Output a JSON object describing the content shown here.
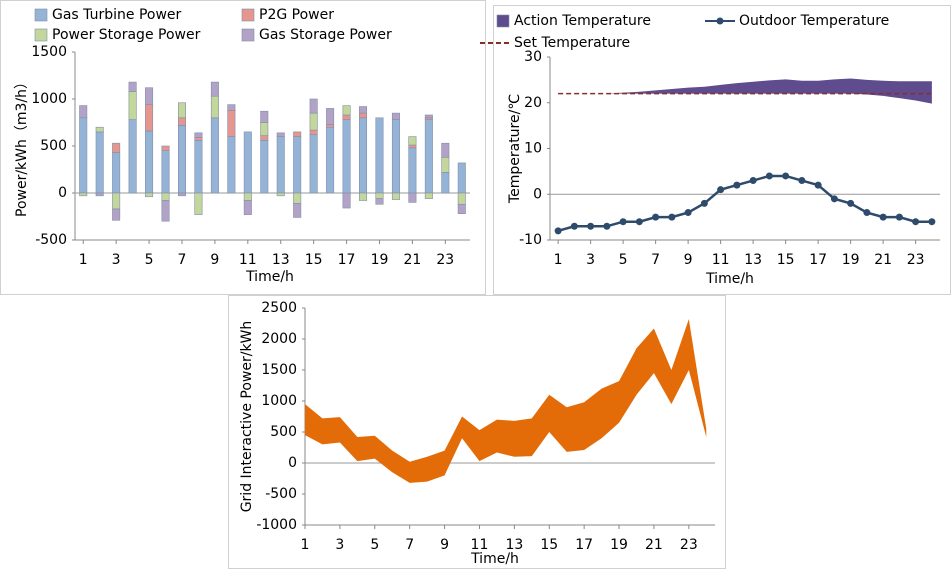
{
  "chart_data": [
    {
      "type": "bar",
      "stacked": true,
      "y_label": "Power/kWh（m3/h）",
      "x_label": "Time/h",
      "x": [
        1,
        2,
        3,
        4,
        5,
        6,
        7,
        8,
        9,
        10,
        11,
        12,
        13,
        14,
        15,
        16,
        17,
        18,
        19,
        20,
        21,
        22,
        23,
        24
      ],
      "xlim": [
        0.5,
        24.5
      ],
      "xticks": [
        1,
        3,
        5,
        7,
        9,
        11,
        13,
        15,
        17,
        19,
        21,
        23
      ],
      "ylim": [
        -500,
        1500
      ],
      "yticks": [
        -500,
        0,
        500,
        1000,
        1500
      ],
      "series": [
        {
          "name": "Gas Turbine Power",
          "color": "#95b3d7",
          "values": [
            800,
            650,
            430,
            780,
            660,
            450,
            720,
            560,
            800,
            600,
            650,
            560,
            600,
            600,
            620,
            700,
            780,
            800,
            800,
            780,
            480,
            780,
            220,
            320
          ]
        },
        {
          "name": "P2G Power",
          "color": "#e6968e",
          "values": [
            0,
            0,
            100,
            0,
            280,
            50,
            80,
            30,
            0,
            280,
            0,
            50,
            0,
            50,
            50,
            30,
            50,
            50,
            0,
            0,
            30,
            20,
            0,
            0
          ]
        },
        {
          "name": "Power Storage Power",
          "color": "#c3d69b",
          "values": [
            -30,
            50,
            -170,
            300,
            -40,
            -80,
            160,
            -230,
            230,
            0,
            -80,
            140,
            -30,
            -110,
            180,
            0,
            100,
            -80,
            -60,
            -70,
            90,
            -60,
            160,
            -120
          ]
        },
        {
          "name": "Gas Storage Power",
          "color": "#b3a2c7",
          "values": [
            130,
            -30,
            -120,
            100,
            180,
            -220,
            -30,
            50,
            150,
            60,
            -150,
            120,
            40,
            -150,
            150,
            170,
            -160,
            70,
            -60,
            70,
            -100,
            30,
            150,
            -100
          ]
        }
      ]
    },
    {
      "type": "line",
      "y_label": "Temperature/℃",
      "x_label": "Time/h",
      "x": [
        1,
        2,
        3,
        4,
        5,
        6,
        7,
        8,
        9,
        10,
        11,
        12,
        13,
        14,
        15,
        16,
        17,
        18,
        19,
        20,
        21,
        22,
        23,
        24
      ],
      "xlim": [
        0.5,
        24.5
      ],
      "xticks": [
        1,
        3,
        5,
        7,
        9,
        11,
        13,
        15,
        17,
        19,
        21,
        23
      ],
      "ylim": [
        -10,
        30
      ],
      "yticks": [
        -10,
        0,
        10,
        20,
        30
      ],
      "series": [
        {
          "name": "Action Temperature",
          "color": "#5e4c8e",
          "kind": "band",
          "upper": [
            22,
            22,
            22,
            22,
            22.2,
            22.4,
            22.7,
            23,
            23.3,
            23.5,
            23.9,
            24.3,
            24.6,
            24.9,
            25.1,
            24.8,
            24.8,
            25.1,
            25.3,
            25,
            24.8,
            24.7,
            24.7,
            24.7
          ],
          "lower": [
            22,
            22,
            22,
            22,
            22,
            22,
            22,
            22,
            22,
            22,
            22,
            22,
            22,
            22,
            22,
            22,
            22,
            22,
            22,
            21.8,
            21.5,
            21,
            20.5,
            19.8
          ]
        },
        {
          "name": "Outdoor Temperature",
          "color": "#2f4b6b",
          "kind": "line",
          "markers": true,
          "values": [
            -8,
            -7,
            -7,
            -7,
            -6,
            -6,
            -5,
            -5,
            -4,
            -2,
            1,
            2,
            3,
            4,
            4,
            3,
            2,
            -1,
            -2,
            -4,
            -5,
            -5,
            -6,
            -6
          ]
        },
        {
          "name": "Set Temperature",
          "color": "#8b2c2c",
          "kind": "line",
          "style": "dashed",
          "values": [
            22,
            22,
            22,
            22,
            22,
            22,
            22,
            22,
            22,
            22,
            22,
            22,
            22,
            22,
            22,
            22,
            22,
            22,
            22,
            22,
            22,
            22,
            22,
            22
          ]
        }
      ]
    },
    {
      "type": "area",
      "y_label": "Grid Interactive Power/kWh",
      "x_label": "Time/h",
      "x": [
        1,
        2,
        3,
        4,
        5,
        6,
        7,
        8,
        9,
        10,
        11,
        12,
        13,
        14,
        15,
        16,
        17,
        18,
        19,
        20,
        21,
        22,
        23,
        24
      ],
      "xlim": [
        1,
        24.5
      ],
      "xticks": [
        1,
        3,
        5,
        7,
        9,
        11,
        13,
        15,
        17,
        19,
        21,
        23
      ],
      "ylim": [
        -1000,
        2500
      ],
      "yticks": [
        -1000,
        -500,
        0,
        500,
        1000,
        1500,
        2000,
        2500
      ],
      "series": [
        {
          "color": "#e36c09",
          "kind": "band",
          "upper": [
            950,
            720,
            740,
            420,
            440,
            200,
            20,
            100,
            200,
            750,
            530,
            700,
            680,
            720,
            1100,
            900,
            980,
            1200,
            1320,
            1850,
            2170,
            1500,
            2320,
            550
          ],
          "lower": [
            450,
            300,
            330,
            30,
            70,
            -150,
            -320,
            -300,
            -200,
            400,
            30,
            170,
            100,
            110,
            500,
            180,
            210,
            400,
            650,
            1100,
            1450,
            950,
            1500,
            420
          ]
        }
      ]
    }
  ]
}
